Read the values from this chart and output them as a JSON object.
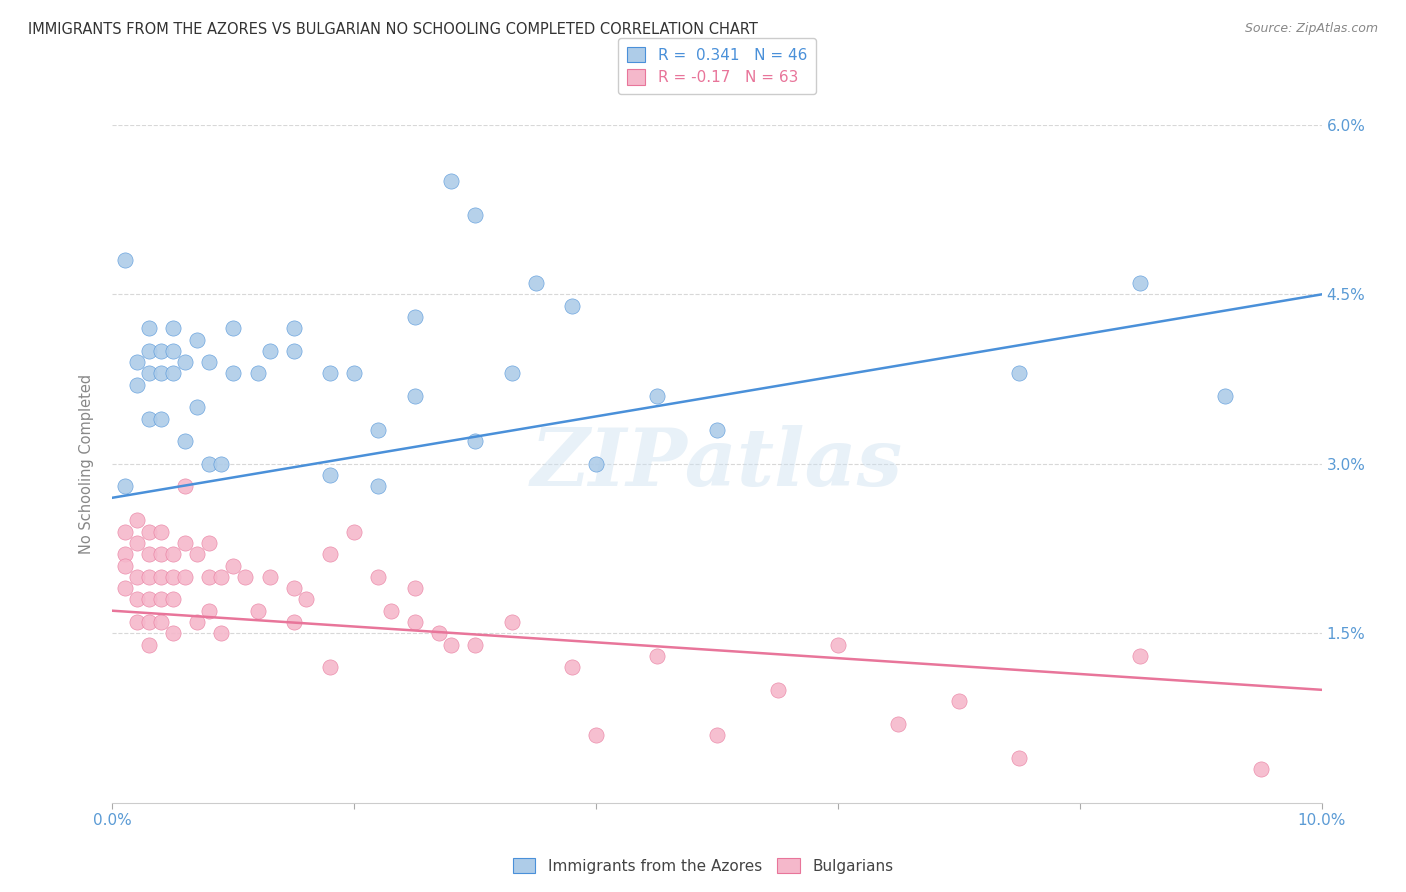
{
  "title": "IMMIGRANTS FROM THE AZORES VS BULGARIAN NO SCHOOLING COMPLETED CORRELATION CHART",
  "source": "Source: ZipAtlas.com",
  "ylabel": "No Schooling Completed",
  "legend_labels": [
    "Immigrants from the Azores",
    "Bulgarians"
  ],
  "series1_color": "#aecce8",
  "series2_color": "#f5b8cb",
  "line1_color": "#4a90d9",
  "line2_color": "#e8759a",
  "R1": 0.341,
  "N1": 46,
  "R2": -0.17,
  "N2": 63,
  "watermark": "ZIPatlas",
  "background_color": "#ffffff",
  "grid_color": "#d8d8d8",
  "title_color": "#333333",
  "axis_label_color": "#5b9bd5",
  "line1_y0": 0.027,
  "line1_y1": 0.045,
  "line2_y0": 0.017,
  "line2_y1": 0.01,
  "xlim": [
    0.0,
    0.1
  ],
  "ylim": [
    0.0,
    0.06
  ],
  "x_tick_positions": [
    0.0,
    0.02,
    0.04,
    0.06,
    0.08,
    0.1
  ],
  "x_tick_labels": [
    "0.0%",
    "",
    "",
    "",
    "",
    "10.0%"
  ],
  "y_tick_positions": [
    0.0,
    0.015,
    0.03,
    0.045,
    0.06
  ],
  "y_tick_labels": [
    "",
    "1.5%",
    "3.0%",
    "4.5%",
    "6.0%"
  ],
  "series1_x": [
    0.001,
    0.001,
    0.002,
    0.002,
    0.003,
    0.003,
    0.003,
    0.003,
    0.004,
    0.004,
    0.004,
    0.005,
    0.005,
    0.005,
    0.006,
    0.006,
    0.007,
    0.007,
    0.008,
    0.008,
    0.009,
    0.01,
    0.01,
    0.012,
    0.013,
    0.015,
    0.015,
    0.018,
    0.018,
    0.02,
    0.022,
    0.022,
    0.025,
    0.025,
    0.028,
    0.03,
    0.033,
    0.035,
    0.038,
    0.04,
    0.045,
    0.05,
    0.075,
    0.085,
    0.092,
    0.03
  ],
  "series1_y": [
    0.028,
    0.048,
    0.039,
    0.037,
    0.042,
    0.04,
    0.038,
    0.034,
    0.04,
    0.038,
    0.034,
    0.042,
    0.04,
    0.038,
    0.039,
    0.032,
    0.041,
    0.035,
    0.039,
    0.03,
    0.03,
    0.042,
    0.038,
    0.038,
    0.04,
    0.042,
    0.04,
    0.038,
    0.029,
    0.038,
    0.033,
    0.028,
    0.043,
    0.036,
    0.055,
    0.052,
    0.038,
    0.046,
    0.044,
    0.03,
    0.036,
    0.033,
    0.038,
    0.046,
    0.036,
    0.032
  ],
  "series2_x": [
    0.001,
    0.001,
    0.001,
    0.001,
    0.002,
    0.002,
    0.002,
    0.002,
    0.002,
    0.003,
    0.003,
    0.003,
    0.003,
    0.003,
    0.003,
    0.004,
    0.004,
    0.004,
    0.004,
    0.004,
    0.005,
    0.005,
    0.005,
    0.005,
    0.006,
    0.006,
    0.006,
    0.007,
    0.007,
    0.008,
    0.008,
    0.008,
    0.009,
    0.009,
    0.01,
    0.011,
    0.012,
    0.013,
    0.015,
    0.015,
    0.016,
    0.018,
    0.018,
    0.02,
    0.022,
    0.023,
    0.025,
    0.025,
    0.027,
    0.028,
    0.03,
    0.033,
    0.038,
    0.04,
    0.045,
    0.05,
    0.055,
    0.06,
    0.065,
    0.07,
    0.075,
    0.085,
    0.095
  ],
  "series2_y": [
    0.024,
    0.022,
    0.021,
    0.019,
    0.025,
    0.023,
    0.02,
    0.018,
    0.016,
    0.024,
    0.022,
    0.02,
    0.018,
    0.016,
    0.014,
    0.024,
    0.022,
    0.02,
    0.018,
    0.016,
    0.022,
    0.02,
    0.018,
    0.015,
    0.028,
    0.023,
    0.02,
    0.022,
    0.016,
    0.023,
    0.02,
    0.017,
    0.02,
    0.015,
    0.021,
    0.02,
    0.017,
    0.02,
    0.019,
    0.016,
    0.018,
    0.022,
    0.012,
    0.024,
    0.02,
    0.017,
    0.019,
    0.016,
    0.015,
    0.014,
    0.014,
    0.016,
    0.012,
    0.006,
    0.013,
    0.006,
    0.01,
    0.014,
    0.007,
    0.009,
    0.004,
    0.013,
    0.003
  ]
}
